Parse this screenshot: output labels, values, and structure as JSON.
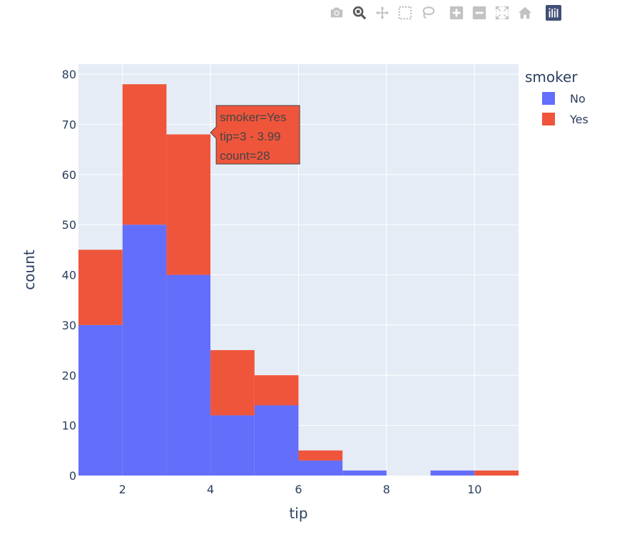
{
  "modebar": {
    "buttons": [
      {
        "name": "camera-icon",
        "icon": "camera"
      },
      {
        "name": "zoom-icon",
        "icon": "zoom",
        "active": true
      },
      {
        "name": "pan-icon",
        "icon": "pan"
      },
      {
        "name": "box-select-icon",
        "icon": "box-select"
      },
      {
        "name": "lasso-select-icon",
        "icon": "lasso"
      },
      {
        "name": "zoom-in-icon",
        "icon": "zoom-in"
      },
      {
        "name": "zoom-out-icon",
        "icon": "zoom-out"
      },
      {
        "name": "autoscale-icon",
        "icon": "autoscale"
      },
      {
        "name": "reset-axes-icon",
        "icon": "home"
      },
      {
        "name": "plotly-logo-icon",
        "icon": "plotly-logo"
      }
    ]
  },
  "chart_data": {
    "type": "bar",
    "barmode": "stack",
    "xlabel": "tip",
    "ylabel": "count",
    "xlim": [
      1,
      11
    ],
    "ylim": [
      0,
      82
    ],
    "x_ticks": [
      2,
      4,
      6,
      8,
      10
    ],
    "y_ticks": [
      0,
      10,
      20,
      30,
      40,
      50,
      60,
      70,
      80
    ],
    "bins": [
      [
        1,
        2
      ],
      [
        2,
        3
      ],
      [
        3,
        4
      ],
      [
        4,
        5
      ],
      [
        5,
        6
      ],
      [
        6,
        7
      ],
      [
        7,
        8
      ],
      [
        8,
        9
      ],
      [
        9,
        10
      ],
      [
        10,
        11
      ]
    ],
    "series": [
      {
        "name": "No",
        "color": "#636efa",
        "values": [
          30,
          50,
          40,
          12,
          14,
          3,
          1,
          0,
          1,
          0
        ]
      },
      {
        "name": "Yes",
        "color": "#ef553b",
        "values": [
          15,
          28,
          28,
          13,
          6,
          2,
          0,
          0,
          0,
          1
        ]
      }
    ],
    "grid": true,
    "plot_bgcolor": "#e5ecf6",
    "legend": {
      "title": "smoker",
      "position": "right"
    },
    "hover": {
      "series_index": 1,
      "bin_index": 2,
      "lines": [
        "smoker=Yes",
        "tip=3 - 3.99",
        "count=28"
      ]
    }
  }
}
